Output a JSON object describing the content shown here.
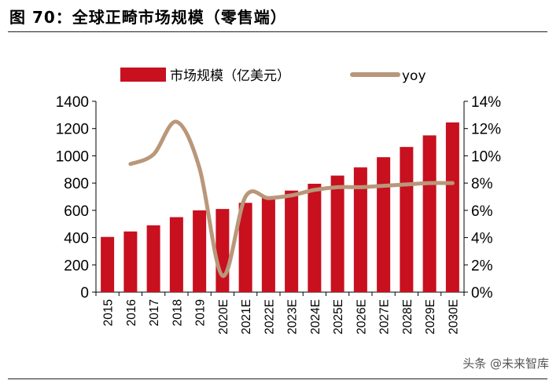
{
  "figure_title": "图 70：全球正畸市场规模（零售端）",
  "watermark": "头条 @未来智库",
  "colors": {
    "bar": "#c8101f",
    "line": "#b9977a"
  },
  "chart_data": {
    "type": "bar",
    "categories": [
      "2015",
      "2016",
      "2017",
      "2018",
      "2019",
      "2020E",
      "2021E",
      "2022E",
      "2023E",
      "2024E",
      "2025E",
      "2026E",
      "2027E",
      "2028E",
      "2029E",
      "2030E"
    ],
    "series": [
      {
        "name": "市场规模（亿美元）",
        "type": "bar",
        "axis": "left",
        "values": [
          405,
          445,
          490,
          550,
          600,
          610,
          655,
          700,
          745,
          795,
          855,
          915,
          990,
          1065,
          1150,
          1245
        ]
      },
      {
        "name": "yoy",
        "type": "line",
        "axis": "right",
        "values": [
          null,
          9.4,
          10.1,
          12.5,
          9.1,
          1.2,
          7.0,
          6.9,
          7.1,
          7.5,
          7.7,
          7.7,
          7.8,
          7.9,
          8.0,
          8.0
        ]
      }
    ],
    "y_left": {
      "ylim": [
        0,
        1400
      ],
      "ticks": [
        "0",
        "200",
        "400",
        "600",
        "800",
        "1000",
        "1200",
        "1400"
      ]
    },
    "y_right": {
      "ylim": [
        0,
        14
      ],
      "ticks": [
        "0%",
        "2%",
        "4%",
        "6%",
        "8%",
        "10%",
        "12%",
        "14%"
      ]
    },
    "legend_position": "top",
    "grid": false
  }
}
